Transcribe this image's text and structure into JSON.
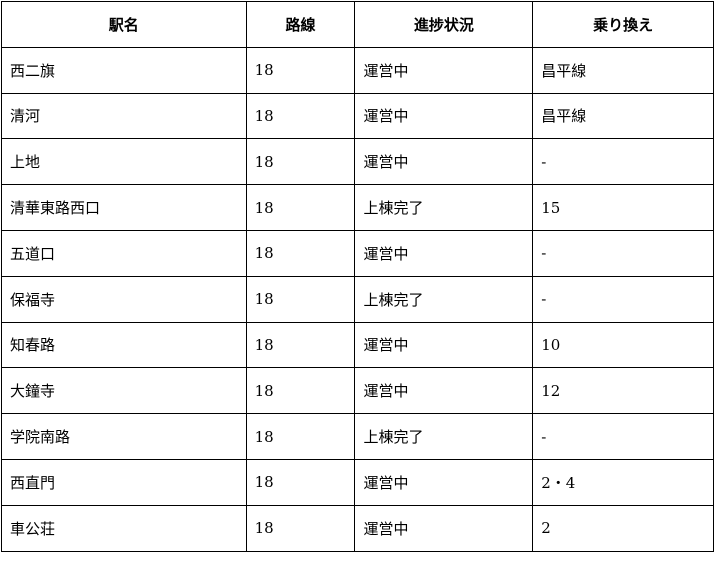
{
  "table": {
    "headers": [
      "駅名",
      "路線",
      "進捗状況",
      "乗り換え"
    ],
    "rows": [
      [
        "西二旗",
        "18",
        "運営中",
        "昌平線"
      ],
      [
        "清河",
        "18",
        "運営中",
        "昌平線"
      ],
      [
        "上地",
        "18",
        "運営中",
        "-"
      ],
      [
        "清華東路西口",
        "18",
        "上棟完了",
        "15"
      ],
      [
        "五道口",
        "18",
        "運営中",
        "-"
      ],
      [
        "保福寺",
        "18",
        "上棟完了",
        "-"
      ],
      [
        "知春路",
        "18",
        "運営中",
        "10"
      ],
      [
        "大鐘寺",
        "18",
        "運営中",
        "12"
      ],
      [
        "学院南路",
        "18",
        "上棟完了",
        "-"
      ],
      [
        "西直門",
        "18",
        "運営中",
        "2・4"
      ],
      [
        "車公荘",
        "18",
        "運営中",
        "2"
      ]
    ]
  }
}
